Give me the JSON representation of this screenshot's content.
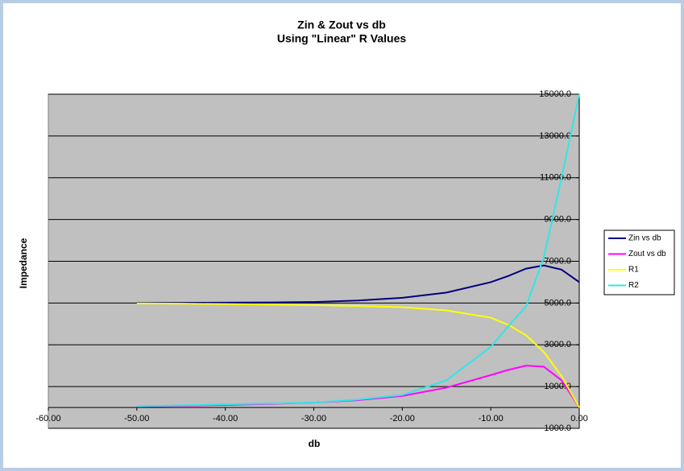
{
  "chart_data": {
    "type": "line",
    "title": "Zin & Zout vs db",
    "subtitle": "Using \"Linear\" R Values",
    "x_label": "db",
    "y_label": "Impedance",
    "x": [
      -50,
      -45,
      -40,
      -35,
      -30,
      -25,
      -20,
      -15,
      -10,
      -8,
      -6,
      -4,
      -2,
      0
    ],
    "series": [
      {
        "name": "Zin vs db",
        "color": "#000080",
        "values": [
          5000,
          5010,
          5020,
          5030,
          5050,
          5120,
          5250,
          5500,
          6000,
          6300,
          6650,
          6800,
          6600,
          6000
        ]
      },
      {
        "name": "Zout vs db",
        "color": "#ff00ff",
        "values": [
          50,
          80,
          120,
          170,
          230,
          350,
          550,
          950,
          1550,
          1800,
          2000,
          1950,
          1300,
          0
        ]
      },
      {
        "name": "R1",
        "color": "#ffff00",
        "values": [
          4980,
          4970,
          4950,
          4930,
          4900,
          4860,
          4800,
          4650,
          4300,
          3950,
          3450,
          2650,
          1500,
          0
        ]
      },
      {
        "name": "R2",
        "color": "#33e6e6",
        "values": [
          60,
          100,
          150,
          190,
          230,
          380,
          600,
          1300,
          2900,
          3900,
          4850,
          7200,
          11000,
          15000
        ]
      }
    ],
    "xlim": [
      -60,
      0
    ],
    "ylim": [
      -1000,
      15000
    ],
    "xticks": [
      {
        "value": -60,
        "label": "-60.00"
      },
      {
        "value": -50,
        "label": "-50.00"
      },
      {
        "value": -40,
        "label": "-40.00"
      },
      {
        "value": -30,
        "label": "-30.00"
      },
      {
        "value": -20,
        "label": "-20.00"
      },
      {
        "value": -10,
        "label": "-10.00"
      },
      {
        "value": 0,
        "label": "0.00"
      }
    ],
    "yticks": [
      {
        "value": -1000,
        "label": "-1000.0"
      },
      {
        "value": 1000,
        "label": "1000.0"
      },
      {
        "value": 3000,
        "label": "3000.0"
      },
      {
        "value": 5000,
        "label": "5000.0"
      },
      {
        "value": 7000,
        "label": "7000.0"
      },
      {
        "value": 9000,
        "label": "9000.0"
      },
      {
        "value": 11000,
        "label": "11000.0"
      },
      {
        "value": 13000,
        "label": "13000.0"
      },
      {
        "value": 15000,
        "label": "15000.0"
      }
    ],
    "grid": true,
    "legend": "right",
    "plot_background": "#c0c0c0"
  }
}
